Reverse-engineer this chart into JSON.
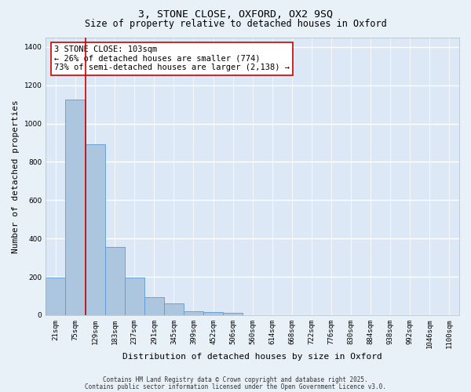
{
  "title1": "3, STONE CLOSE, OXFORD, OX2 9SQ",
  "title2": "Size of property relative to detached houses in Oxford",
  "xlabel": "Distribution of detached houses by size in Oxford",
  "ylabel": "Number of detached properties",
  "categories": [
    "21sqm",
    "75sqm",
    "129sqm",
    "183sqm",
    "237sqm",
    "291sqm",
    "345sqm",
    "399sqm",
    "452sqm",
    "506sqm",
    "560sqm",
    "614sqm",
    "668sqm",
    "722sqm",
    "776sqm",
    "830sqm",
    "884sqm",
    "938sqm",
    "992sqm",
    "1046sqm",
    "1100sqm"
  ],
  "values": [
    195,
    1125,
    890,
    355,
    195,
    95,
    60,
    20,
    18,
    12,
    0,
    0,
    0,
    0,
    0,
    0,
    0,
    0,
    0,
    0,
    0
  ],
  "bar_color": "#adc6e0",
  "bar_edge_color": "#5b9bd5",
  "vline_color": "#cc0000",
  "annotation_text": "3 STONE CLOSE: 103sqm\n← 26% of detached houses are smaller (774)\n73% of semi-detached houses are larger (2,138) →",
  "annotation_box_color": "#cc0000",
  "ylim": [
    0,
    1450
  ],
  "yticks": [
    0,
    200,
    400,
    600,
    800,
    1000,
    1200,
    1400
  ],
  "background_color": "#dce8f5",
  "fig_background_color": "#e8f0f8",
  "grid_color": "#ffffff",
  "footer1": "Contains HM Land Registry data © Crown copyright and database right 2025.",
  "footer2": "Contains public sector information licensed under the Open Government Licence v3.0.",
  "title1_fontsize": 9.5,
  "title2_fontsize": 8.5,
  "axis_label_fontsize": 8,
  "tick_fontsize": 6.5,
  "annotation_fontsize": 7.5,
  "footer_fontsize": 5.5
}
